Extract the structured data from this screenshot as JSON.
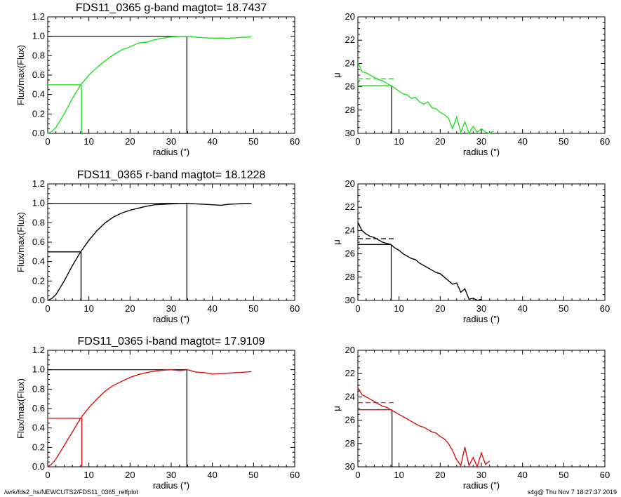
{
  "footer": {
    "path": "/wrk/fds2_hs/NEWCUTS2/FDS11_0365_reffplot",
    "stamp": "s4g@  Thu Nov  7 18:27:37 2019"
  },
  "colors": {
    "g": "#22e122",
    "r": "#000000",
    "i": "#e01010",
    "frame": "#000000"
  },
  "chart_data": [
    {
      "type": "line",
      "title": "FDS11_0365 g-band  magtot=     18.7437",
      "xlabel": "radius (\")",
      "ylabel": "Flux/max(Flux)",
      "xlim": [
        0,
        60
      ],
      "ylim": [
        0,
        1.2
      ],
      "xticks": [
        "0",
        "10",
        "20",
        "30",
        "40",
        "50",
        "60"
      ],
      "yticks": [
        "0.0",
        "0.2",
        "0.4",
        "0.6",
        "0.8",
        "1.0",
        "1.2"
      ],
      "color": "#22e122",
      "x": [
        0,
        1,
        2,
        3,
        4,
        5,
        6,
        7,
        8,
        10,
        12,
        14,
        16,
        18,
        20,
        22,
        24,
        26,
        28,
        30,
        32,
        34,
        36,
        38,
        40,
        42,
        44,
        46,
        48,
        49.5
      ],
      "y": [
        0.0,
        0.02,
        0.06,
        0.13,
        0.2,
        0.28,
        0.36,
        0.43,
        0.5,
        0.6,
        0.68,
        0.75,
        0.81,
        0.86,
        0.89,
        0.93,
        0.94,
        0.965,
        0.98,
        0.995,
        1.0,
        1.0,
        0.99,
        0.985,
        0.98,
        0.982,
        0.98,
        0.985,
        0.99,
        0.995
      ],
      "half_light": {
        "radius": 8.2,
        "level": 0.5
      },
      "total": {
        "radius": 33.8,
        "level": 1.0
      }
    },
    {
      "type": "line",
      "title": "",
      "xlabel": "radius (\")",
      "ylabel": "μ",
      "xlim": [
        0,
        60
      ],
      "ylim": [
        30,
        20
      ],
      "xticks": [
        "0",
        "10",
        "20",
        "30",
        "40",
        "50",
        "60"
      ],
      "yticks": [
        "20",
        "22",
        "24",
        "26",
        "28",
        "30"
      ],
      "color": "#22e122",
      "x": [
        0,
        1,
        2,
        3,
        4,
        5,
        6,
        7,
        8,
        9,
        10,
        11,
        12,
        13,
        14,
        15,
        16,
        17,
        18,
        19,
        20,
        21,
        22,
        23,
        24,
        25,
        26,
        27,
        28,
        29,
        30,
        31,
        32,
        33
      ],
      "y": [
        23.9,
        24.7,
        24.8,
        25.0,
        25.2,
        25.4,
        25.5,
        25.7,
        25.9,
        26.1,
        26.4,
        26.6,
        26.7,
        27.0,
        26.9,
        27.3,
        27.5,
        27.3,
        27.8,
        27.9,
        28.2,
        28.4,
        28.7,
        29.6,
        28.6,
        29.9,
        29.0,
        30.0,
        29.4,
        29.9,
        29.6,
        29.9,
        30.0,
        29.8
      ],
      "dashed_level": 25.3,
      "ref_level": 25.9,
      "ref_radius": 8.2
    },
    {
      "type": "line",
      "title": "FDS11_0365 r-band  magtot=     18.1228",
      "xlabel": "radius (\")",
      "ylabel": "Flux/max(Flux)",
      "xlim": [
        0,
        60
      ],
      "ylim": [
        0,
        1.2
      ],
      "xticks": [
        "0",
        "10",
        "20",
        "30",
        "40",
        "50",
        "60"
      ],
      "yticks": [
        "0.0",
        "0.2",
        "0.4",
        "0.6",
        "0.8",
        "1.0",
        "1.2"
      ],
      "color": "#000000",
      "x": [
        0,
        1,
        2,
        3,
        4,
        5,
        6,
        7,
        8,
        10,
        12,
        14,
        16,
        18,
        20,
        22,
        24,
        26,
        28,
        30,
        32,
        34,
        36,
        38,
        40,
        42,
        44,
        46,
        48,
        49.5
      ],
      "y": [
        0.0,
        0.02,
        0.06,
        0.13,
        0.2,
        0.28,
        0.36,
        0.43,
        0.5,
        0.62,
        0.72,
        0.8,
        0.86,
        0.9,
        0.93,
        0.95,
        0.97,
        0.985,
        0.99,
        0.995,
        1.0,
        1.0,
        0.995,
        0.99,
        0.985,
        0.98,
        0.99,
        0.995,
        1.0,
        1.0
      ],
      "half_light": {
        "radius": 8.1,
        "level": 0.5
      },
      "total": {
        "radius": 33.8,
        "level": 1.0
      }
    },
    {
      "type": "line",
      "title": "",
      "xlabel": "radius (\")",
      "ylabel": "μ",
      "xlim": [
        0,
        60
      ],
      "ylim": [
        30,
        20
      ],
      "xticks": [
        "0",
        "10",
        "20",
        "30",
        "40",
        "50",
        "60"
      ],
      "yticks": [
        "20",
        "22",
        "24",
        "26",
        "28",
        "30"
      ],
      "color": "#000000",
      "x": [
        0,
        1,
        2,
        3,
        4,
        5,
        6,
        7,
        8,
        9,
        10,
        11,
        12,
        13,
        14,
        15,
        16,
        17,
        18,
        19,
        20,
        21,
        22,
        23,
        24,
        25,
        26,
        27,
        28,
        29,
        30
      ],
      "y": [
        23.3,
        24.0,
        24.3,
        24.5,
        24.6,
        24.8,
        25.0,
        25.1,
        25.2,
        25.5,
        25.7,
        26.0,
        26.2,
        26.4,
        26.5,
        26.8,
        27.0,
        27.2,
        27.4,
        27.6,
        27.7,
        28.0,
        28.3,
        28.6,
        28.5,
        29.3,
        29.0,
        29.9,
        29.8,
        30.0,
        29.9
      ],
      "dashed_level": 24.7,
      "ref_level": 25.2,
      "ref_radius": 8.1
    },
    {
      "type": "line",
      "title": "FDS11_0365 i-band  magtot=     17.9109",
      "xlabel": "radius (\")",
      "ylabel": "Flux/max(Flux)",
      "xlim": [
        0,
        60
      ],
      "ylim": [
        0,
        1.2
      ],
      "xticks": [
        "0",
        "10",
        "20",
        "30",
        "40",
        "50",
        "60"
      ],
      "yticks": [
        "0.0",
        "0.2",
        "0.4",
        "0.6",
        "0.8",
        "1.0",
        "1.2"
      ],
      "color": "#e01010",
      "x": [
        0,
        1,
        2,
        3,
        4,
        5,
        6,
        7,
        8,
        10,
        12,
        14,
        16,
        18,
        20,
        22,
        24,
        26,
        28,
        30,
        32,
        34,
        36,
        38,
        40,
        42,
        44,
        46,
        48,
        49.5
      ],
      "y": [
        0.0,
        0.03,
        0.08,
        0.15,
        0.22,
        0.29,
        0.36,
        0.43,
        0.5,
        0.61,
        0.7,
        0.78,
        0.84,
        0.88,
        0.92,
        0.95,
        0.97,
        0.985,
        0.995,
        1.0,
        0.99,
        1.0,
        0.975,
        0.97,
        0.955,
        0.96,
        0.965,
        0.97,
        0.975,
        0.98
      ],
      "half_light": {
        "radius": 8.3,
        "level": 0.5
      },
      "total": {
        "radius": 33.8,
        "level": 1.0
      }
    },
    {
      "type": "line",
      "title": "",
      "xlabel": "radius (\")",
      "ylabel": "μ",
      "xlim": [
        0,
        60
      ],
      "ylim": [
        30,
        20
      ],
      "xticks": [
        "0",
        "10",
        "20",
        "30",
        "40",
        "50",
        "60"
      ],
      "yticks": [
        "20",
        "22",
        "24",
        "26",
        "28",
        "30"
      ],
      "color": "#e01010",
      "x": [
        0,
        1,
        2,
        3,
        4,
        5,
        6,
        7,
        8,
        9,
        10,
        11,
        12,
        13,
        14,
        15,
        16,
        17,
        18,
        19,
        20,
        21,
        22,
        23,
        24,
        25,
        26,
        27,
        28,
        29,
        30,
        31,
        32
      ],
      "y": [
        23.2,
        23.8,
        24.0,
        24.2,
        24.4,
        24.6,
        24.8,
        24.9,
        25.1,
        25.3,
        25.5,
        25.7,
        25.9,
        26.1,
        26.3,
        26.5,
        26.6,
        26.8,
        27.0,
        27.1,
        27.4,
        27.6,
        28.0,
        28.6,
        29.4,
        29.9,
        28.3,
        29.9,
        29.2,
        30.0,
        28.8,
        29.8,
        29.5
      ],
      "dashed_level": 24.5,
      "ref_level": 25.1,
      "ref_radius": 8.3
    }
  ]
}
